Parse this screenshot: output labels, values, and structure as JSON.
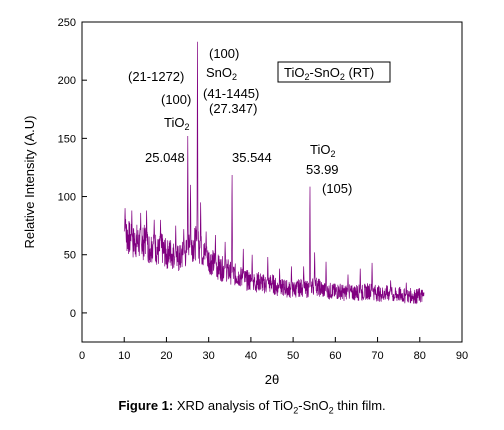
{
  "caption": {
    "label": "Figure 1:",
    "text_part1": "XRD analysis of TiO",
    "sub": "2",
    "text_part2": "-SnO",
    "sub2": "2",
    "text_part3": " thin film."
  },
  "chart_data": {
    "type": "line",
    "xlabel": "2θ",
    "ylabel": "Relative Intensity (A.U)",
    "xlim": [
      0,
      90
    ],
    "ylim": [
      -25,
      250
    ],
    "xticks": [
      0,
      10,
      20,
      30,
      40,
      50,
      60,
      70,
      80,
      90
    ],
    "yticks": [
      0,
      50,
      100,
      150,
      200,
      250
    ],
    "color": "#800080",
    "legend": {
      "text": "TiO2-SnO2 (RT)",
      "main1": "TiO",
      "sub1": "2",
      "main2": "-SnO",
      "sub2": "2",
      "main3": " (RT)",
      "position": "top-right"
    },
    "annotations": [
      {
        "id": "a1",
        "text": "(21-1272)"
      },
      {
        "id": "a2",
        "text": "(100)"
      },
      {
        "id": "a3",
        "main": "TiO",
        "sub": "2"
      },
      {
        "id": "a4",
        "text": "25.048"
      },
      {
        "id": "a5",
        "text": "(100)"
      },
      {
        "id": "a6",
        "main": "SnO",
        "sub": "2"
      },
      {
        "id": "a7",
        "text": "(41-1445)"
      },
      {
        "id": "a8",
        "text": "(27.347)"
      },
      {
        "id": "a9",
        "text": "35.544"
      },
      {
        "id": "a10",
        "main": "TiO",
        "sub": "2"
      },
      {
        "id": "a11",
        "text": "53.99"
      },
      {
        "id": "a12",
        "text": "(105)"
      }
    ],
    "series": [
      {
        "anchors": [
          [
            10,
            70
          ],
          [
            11,
            65
          ],
          [
            12,
            60
          ],
          [
            13,
            62
          ],
          [
            14,
            58
          ],
          [
            15,
            62
          ],
          [
            16,
            55
          ],
          [
            17,
            60
          ],
          [
            18,
            52
          ],
          [
            19,
            55
          ],
          [
            20,
            50
          ],
          [
            21,
            52
          ],
          [
            22,
            48
          ],
          [
            23,
            46
          ],
          [
            24,
            50
          ],
          [
            25,
            52
          ],
          [
            26,
            58
          ],
          [
            27,
            60
          ],
          [
            28,
            55
          ],
          [
            29,
            50
          ],
          [
            30,
            46
          ],
          [
            31,
            43
          ],
          [
            32,
            40
          ],
          [
            33,
            38
          ],
          [
            34,
            38
          ],
          [
            35,
            35
          ],
          [
            36,
            33
          ],
          [
            37,
            32
          ],
          [
            38,
            30
          ],
          [
            39,
            28
          ],
          [
            40,
            27
          ],
          [
            41,
            26
          ],
          [
            42,
            27
          ],
          [
            43,
            25
          ],
          [
            44,
            24
          ],
          [
            45,
            26
          ],
          [
            46,
            22
          ],
          [
            47,
            21
          ],
          [
            48,
            22
          ],
          [
            49,
            20
          ],
          [
            50,
            20
          ],
          [
            51,
            21
          ],
          [
            52,
            22
          ],
          [
            53,
            20
          ],
          [
            54,
            22
          ],
          [
            55,
            24
          ],
          [
            56,
            22
          ],
          [
            57,
            20
          ],
          [
            58,
            18
          ],
          [
            59,
            19
          ],
          [
            60,
            18
          ],
          [
            61,
            19
          ],
          [
            62,
            17
          ],
          [
            63,
            18
          ],
          [
            64,
            17
          ],
          [
            65,
            18
          ],
          [
            66,
            17
          ],
          [
            67,
            18
          ],
          [
            68,
            19
          ],
          [
            69,
            18
          ],
          [
            70,
            17
          ],
          [
            71,
            16
          ],
          [
            72,
            17
          ],
          [
            73,
            16
          ],
          [
            74,
            15
          ],
          [
            75,
            16
          ],
          [
            76,
            15
          ],
          [
            77,
            14
          ],
          [
            78,
            15
          ],
          [
            79,
            14
          ],
          [
            80,
            15
          ],
          [
            81,
            14
          ]
        ],
        "peaks": [
          [
            10.2,
            90
          ],
          [
            11.8,
            88
          ],
          [
            13.9,
            86
          ],
          [
            15.3,
            88
          ],
          [
            17.1,
            80
          ],
          [
            18.6,
            80
          ],
          [
            22.2,
            75
          ],
          [
            24.1,
            72
          ],
          [
            25.05,
            152
          ],
          [
            25.7,
            110
          ],
          [
            27.35,
            233
          ],
          [
            28.1,
            95
          ],
          [
            29.4,
            70
          ],
          [
            31.6,
            67
          ],
          [
            33.9,
            61
          ],
          [
            35.54,
            120
          ],
          [
            38.2,
            55
          ],
          [
            40.3,
            50
          ],
          [
            44.0,
            48
          ],
          [
            46.8,
            38
          ],
          [
            49.6,
            40
          ],
          [
            52.5,
            40
          ],
          [
            53.99,
            110
          ],
          [
            55.1,
            52
          ],
          [
            57.8,
            44
          ],
          [
            63.0,
            33
          ],
          [
            65.9,
            38
          ],
          [
            68.7,
            43
          ],
          [
            73.1,
            28
          ],
          [
            76.8,
            26
          ]
        ]
      }
    ]
  }
}
